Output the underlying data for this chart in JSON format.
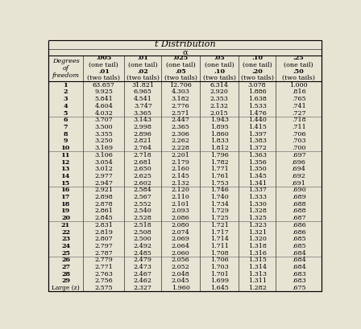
{
  "title": "t Distribution",
  "alpha_label": "α",
  "col_headers": [
    [
      ".005",
      "(one tail)",
      ".01",
      "(two tails)"
    ],
    [
      ".01",
      "(one tail)",
      ".02",
      "(two tails)"
    ],
    [
      ".025",
      "(one tail)",
      ".05",
      "(two tails)"
    ],
    [
      ".05",
      "(one tail)",
      ".10",
      "(two tails)"
    ],
    [
      ".10",
      "(one tail)",
      ".20",
      "(two tails)"
    ],
    [
      ".25",
      "(one tail)",
      ".50",
      "(two tails)"
    ]
  ],
  "rows": [
    [
      "1",
      "63.657",
      "31.821",
      "12.706",
      "6.314",
      "3.078",
      "1.000"
    ],
    [
      "2",
      "9.925",
      "6.965",
      "4.303",
      "2.920",
      "1.886",
      ".816"
    ],
    [
      "3",
      "5.841",
      "4.541",
      "3.182",
      "2.353",
      "1.638",
      ".765"
    ],
    [
      "4",
      "4.604",
      "3.747",
      "2.776",
      "2.132",
      "1.533",
      ".741"
    ],
    [
      "5",
      "4.032",
      "3.365",
      "2.571",
      "2.015",
      "1.476",
      ".727"
    ],
    [
      "6",
      "3.707",
      "3.143",
      "2.447",
      "1.943",
      "1.440",
      ".718"
    ],
    [
      "7",
      "3.500",
      "2.998",
      "2.365",
      "1.895",
      "1.415",
      ".711"
    ],
    [
      "8",
      "3.355",
      "2.896",
      "2.306",
      "1.860",
      "1.397",
      ".706"
    ],
    [
      "9",
      "3.250",
      "2.821",
      "2.262",
      "1.833",
      "1.383",
      ".703"
    ],
    [
      "10",
      "3.169",
      "2.764",
      "2.228",
      "1.812",
      "1.372",
      ".700"
    ],
    [
      "11",
      "3.106",
      "2.718",
      "2.201",
      "1.796",
      "1.363",
      ".697"
    ],
    [
      "12",
      "3.054",
      "2.681",
      "2.179",
      "1.782",
      "1.356",
      ".696"
    ],
    [
      "13",
      "3.012",
      "2.650",
      "2.160",
      "1.771",
      "1.350",
      ".694"
    ],
    [
      "14",
      "2.977",
      "2.625",
      "2.145",
      "1.761",
      "1.345",
      ".692"
    ],
    [
      "15",
      "2.947",
      "2.602",
      "2.132",
      "1.753",
      "1.341",
      ".691"
    ],
    [
      "16",
      "2.921",
      "2.584",
      "2.120",
      "1.746",
      "1.337",
      ".690"
    ],
    [
      "17",
      "2.898",
      "2.567",
      "2.110",
      "1.740",
      "1.333",
      ".689"
    ],
    [
      "18",
      "2.878",
      "2.552",
      "2.101",
      "1.734",
      "1.330",
      ".688"
    ],
    [
      "19",
      "2.861",
      "2.540",
      "2.093",
      "1.729",
      "1.328",
      ".688"
    ],
    [
      "20",
      "2.845",
      "2.528",
      "2.086",
      "1.725",
      "1.325",
      ".687"
    ],
    [
      "21",
      "2.831",
      "2.518",
      "2.080",
      "1.721",
      "1.323",
      ".686"
    ],
    [
      "22",
      "2.819",
      "2.508",
      "2.074",
      "1.717",
      "1.321",
      ".686"
    ],
    [
      "23",
      "2.807",
      "2.500",
      "2.069",
      "1.714",
      "1.320",
      ".685"
    ],
    [
      "24",
      "2.797",
      "2.492",
      "2.064",
      "1.711",
      "1.318",
      ".685"
    ],
    [
      "25",
      "2.787",
      "2.485",
      "2.060",
      "1.708",
      "1.316",
      ".684"
    ],
    [
      "26",
      "2.779",
      "2.479",
      "2.056",
      "1.706",
      "1.315",
      ".684"
    ],
    [
      "27",
      "2.771",
      "2.473",
      "2.052",
      "1.703",
      "1.314",
      ".684"
    ],
    [
      "28",
      "2.763",
      "2.467",
      "2.048",
      "1.701",
      "1.313",
      ".683"
    ],
    [
      "29",
      "2.756",
      "2.462",
      "2.045",
      "1.699",
      "1.311",
      ".683"
    ],
    [
      "Large (z)",
      "2.575",
      "2.327",
      "1.960",
      "1.645",
      "1.282",
      ".675"
    ]
  ],
  "bg_color": "#e8e4d4",
  "line_color": "#000000",
  "font_size": 5.8,
  "title_font_size": 8.0
}
